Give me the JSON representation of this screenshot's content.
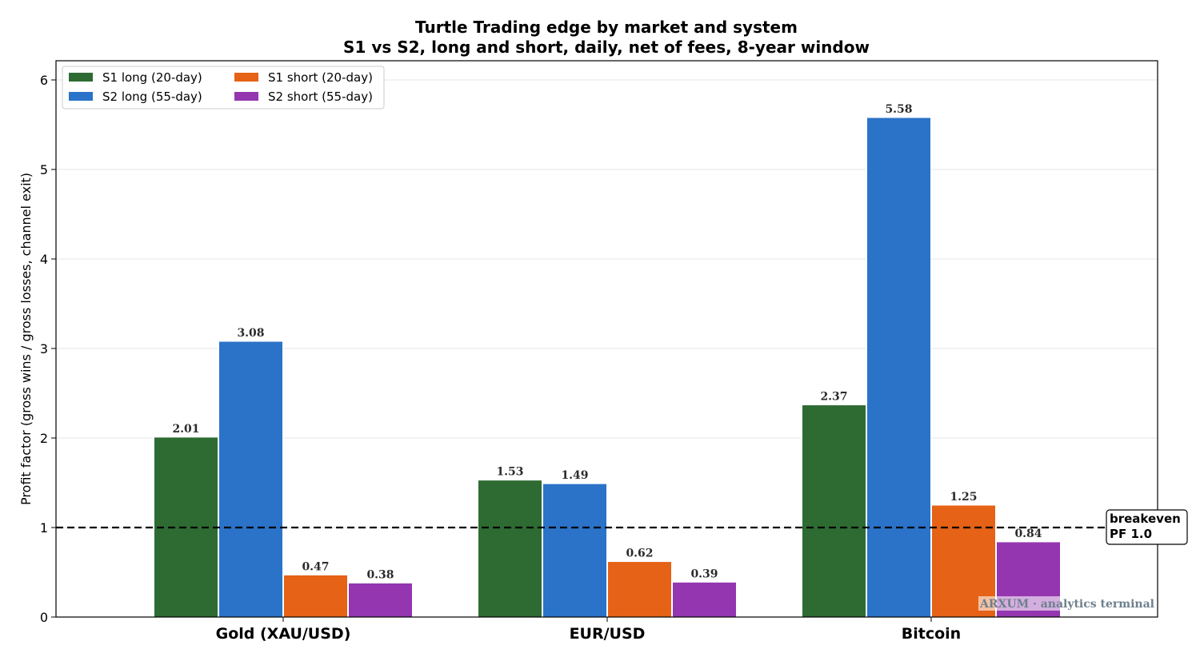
{
  "chart_data": {
    "type": "bar",
    "title": "Turtle Trading edge by market and system",
    "subtitle": "S1 vs S2, long and short, daily, net of fees, 8-year window",
    "xlabel": "",
    "ylabel": "Profit factor (gross wins / gross losses, channel exit)",
    "categories": [
      "Gold (XAU/USD)",
      "EUR/USD",
      "Bitcoin"
    ],
    "series": [
      {
        "name": "S1 long (20-day)",
        "color": "#2e6b32",
        "values": [
          2.01,
          1.53,
          2.37
        ]
      },
      {
        "name": "S2 long (55-day)",
        "color": "#2a73c8",
        "values": [
          3.08,
          1.49,
          5.58
        ]
      },
      {
        "name": "S1 short (20-day)",
        "color": "#e56216",
        "values": [
          0.47,
          0.62,
          1.25
        ]
      },
      {
        "name": "S2 short (55-day)",
        "color": "#9436b0",
        "values": [
          0.38,
          0.39,
          0.84
        ]
      }
    ],
    "value_labels": [
      [
        "2.01",
        "1.53",
        "2.37"
      ],
      [
        "3.08",
        "1.49",
        "5.58"
      ],
      [
        "0.47",
        "0.62",
        "1.25"
      ],
      [
        "0.38",
        "0.39",
        "0.84"
      ]
    ],
    "ylim": [
      0,
      6.2
    ],
    "yticks": [
      0,
      1,
      2,
      3,
      4,
      5,
      6
    ],
    "ytick_labels": [
      "0",
      "1",
      "2",
      "3",
      "4",
      "5",
      "6"
    ],
    "grid": "horizontal",
    "legend_placement": "top-left",
    "reference_line": {
      "y": 1.0,
      "style": "dashed",
      "color": "#000000",
      "label_lines": [
        "breakeven",
        "PF 1.0"
      ]
    },
    "watermark": "ARXUM · analytics terminal"
  }
}
